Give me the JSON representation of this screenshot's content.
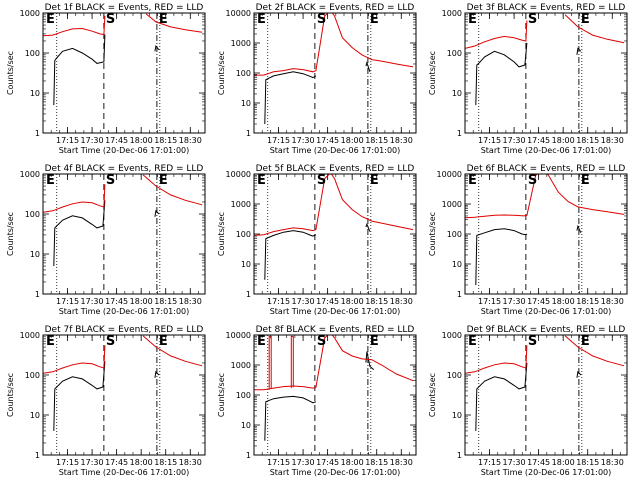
{
  "chart_data": [
    {
      "type": "line",
      "title": "Det 1f BLACK = Events, RED = LLD",
      "xlabel": "Start Time (20-Dec-06 17:01:00)",
      "ylabel": "Counts/sec",
      "yscale": "log",
      "ylim": [
        1,
        1000
      ],
      "yticks": [
        "1",
        "10",
        "100",
        "1000"
      ],
      "xlim": [
        17.0,
        18.65
      ],
      "xticks": [
        "17:15",
        "17:30",
        "17:45",
        "18:00",
        "18:15",
        "18:30"
      ],
      "markers": [
        "E",
        "S",
        "E"
      ],
      "series": [
        {
          "color": "#000000",
          "x": [
            17.11,
            17.12,
            17.14,
            17.2,
            17.3,
            17.4,
            17.5,
            17.55,
            17.62,
            17.63
          ],
          "y": [
            5,
            65,
            75,
            110,
            130,
            100,
            70,
            55,
            60,
            290
          ]
        },
        {
          "color": "#000000",
          "x": [
            18.14,
            18.15,
            18.18
          ],
          "y": [
            110,
            150,
            120
          ]
        },
        {
          "color": "#e00000",
          "x": [
            17.0,
            17.1,
            17.2,
            17.3,
            17.4,
            17.5,
            17.58,
            17.62,
            17.63
          ],
          "y": [
            270,
            280,
            340,
            400,
            410,
            350,
            300,
            290,
            850
          ]
        },
        {
          "color": "#e00000",
          "x": [
            18.05,
            18.15,
            18.3,
            18.45,
            18.62
          ],
          "y": [
            950,
            600,
            450,
            380,
            330
          ]
        }
      ]
    },
    {
      "type": "line",
      "title": "Det 2f BLACK = Events, RED = LLD",
      "xlabel": "Start Time (20-Dec-06 17:01:00)",
      "ylabel": "Counts/sec",
      "yscale": "log",
      "ylim": [
        1,
        10000
      ],
      "yticks": [
        "1",
        "10",
        "100",
        "1000",
        "10000"
      ],
      "xlim": [
        17.0,
        18.65
      ],
      "xticks": [
        "17:15",
        "17:30",
        "17:45",
        "18:00",
        "18:15",
        "18:30"
      ],
      "markers": [
        "E",
        "S",
        "E"
      ],
      "series": [
        {
          "color": "#000000",
          "x": [
            17.11,
            17.12,
            17.2,
            17.3,
            17.4,
            17.5,
            17.58,
            17.6,
            17.63
          ],
          "y": [
            2,
            60,
            80,
            95,
            110,
            95,
            75,
            70,
            80
          ]
        },
        {
          "color": "#000000",
          "x": [
            18.14,
            18.15,
            18.18
          ],
          "y": [
            170,
            220,
            110
          ]
        },
        {
          "color": "#e00000",
          "x": [
            17.0,
            17.1,
            17.2,
            17.3,
            17.4,
            17.5,
            17.6,
            17.63,
            17.72,
            17.78,
            17.82
          ],
          "y": [
            85,
            85,
            110,
            120,
            140,
            130,
            110,
            120,
            8000,
            12000,
            8000
          ]
        },
        {
          "color": "#e00000",
          "x": [
            17.82,
            17.9,
            18.0,
            18.1,
            18.2,
            18.3,
            18.45,
            18.62
          ],
          "y": [
            8000,
            1500,
            700,
            400,
            280,
            250,
            200,
            160
          ]
        }
      ]
    },
    {
      "type": "line",
      "title": "Det 3f BLACK = Events, RED = LLD",
      "xlabel": "Start Time (20-Dec-06 17:01:00)",
      "ylabel": "Counts/sec",
      "yscale": "log",
      "ylim": [
        1,
        1000
      ],
      "yticks": [
        "1",
        "10",
        "100",
        "1000"
      ],
      "xlim": [
        17.0,
        18.65
      ],
      "xticks": [
        "17:15",
        "17:30",
        "17:45",
        "18:00",
        "18:15",
        "18:30"
      ],
      "markers": [
        "E",
        "S",
        "E"
      ],
      "series": [
        {
          "color": "#000000",
          "x": [
            17.11,
            17.12,
            17.14,
            17.2,
            17.3,
            17.4,
            17.5,
            17.55,
            17.61,
            17.63
          ],
          "y": [
            5,
            50,
            55,
            80,
            110,
            90,
            60,
            45,
            50,
            180
          ]
        },
        {
          "color": "#000000",
          "x": [
            18.14,
            18.15,
            18.18
          ],
          "y": [
            90,
            130,
            110
          ]
        },
        {
          "color": "#e00000",
          "x": [
            17.0,
            17.1,
            17.2,
            17.3,
            17.4,
            17.5,
            17.58,
            17.62,
            17.63
          ],
          "y": [
            130,
            150,
            190,
            230,
            260,
            240,
            210,
            200,
            650
          ]
        },
        {
          "color": "#e00000",
          "x": [
            18.02,
            18.15,
            18.3,
            18.45,
            18.62
          ],
          "y": [
            900,
            450,
            280,
            220,
            180
          ]
        }
      ]
    },
    {
      "type": "line",
      "title": "Det 4f BLACK = Events, RED = LLD",
      "xlabel": "Start Time (20-Dec-06 17:01:00)",
      "ylabel": "Counts/sec",
      "yscale": "log",
      "ylim": [
        1,
        1000
      ],
      "yticks": [
        "1",
        "10",
        "100",
        "1000"
      ],
      "xlim": [
        17.0,
        18.65
      ],
      "xticks": [
        "17:15",
        "17:30",
        "17:45",
        "18:00",
        "18:15",
        "18:30"
      ],
      "markers": [
        "E",
        "S",
        "E"
      ],
      "series": [
        {
          "color": "#000000",
          "x": [
            17.11,
            17.12,
            17.14,
            17.2,
            17.3,
            17.4,
            17.5,
            17.55,
            17.61,
            17.63
          ],
          "y": [
            5,
            45,
            50,
            70,
            90,
            80,
            55,
            45,
            50,
            220
          ]
        },
        {
          "color": "#000000",
          "x": [
            18.14,
            18.15,
            18.18
          ],
          "y": [
            85,
            120,
            100
          ]
        },
        {
          "color": "#e00000",
          "x": [
            17.0,
            17.1,
            17.2,
            17.3,
            17.4,
            17.5,
            17.58,
            17.62,
            17.63
          ],
          "y": [
            110,
            120,
            150,
            180,
            200,
            190,
            160,
            150,
            550
          ]
        },
        {
          "color": "#e00000",
          "x": [
            18.02,
            18.15,
            18.3,
            18.45,
            18.62
          ],
          "y": [
            950,
            500,
            300,
            220,
            170
          ]
        }
      ]
    },
    {
      "type": "line",
      "title": "Det 5f BLACK = Events, RED = LLD",
      "xlabel": "Start Time (20-Dec-06 17:01:00)",
      "ylabel": "Counts/sec",
      "yscale": "log",
      "ylim": [
        1,
        10000
      ],
      "yticks": [
        "1",
        "10",
        "100",
        "1000",
        "10000"
      ],
      "xlim": [
        17.0,
        18.65
      ],
      "xticks": [
        "17:15",
        "17:30",
        "17:45",
        "18:00",
        "18:15",
        "18:30"
      ],
      "markers": [
        "E",
        "S",
        "E"
      ],
      "series": [
        {
          "color": "#000000",
          "x": [
            17.11,
            17.12,
            17.2,
            17.3,
            17.4,
            17.5,
            17.58,
            17.6,
            17.63
          ],
          "y": [
            3,
            70,
            90,
            115,
            130,
            115,
            90,
            85,
            95
          ]
        },
        {
          "color": "#000000",
          "x": [
            18.14,
            18.15,
            18.18
          ],
          "y": [
            170,
            210,
            120
          ]
        },
        {
          "color": "#e00000",
          "x": [
            17.0,
            17.1,
            17.2,
            17.3,
            17.4,
            17.5,
            17.6,
            17.63,
            17.72,
            17.78,
            17.82
          ],
          "y": [
            90,
            95,
            120,
            140,
            160,
            150,
            130,
            140,
            7000,
            11000,
            7000
          ]
        },
        {
          "color": "#e00000",
          "x": [
            17.82,
            17.9,
            18.0,
            18.1,
            18.2,
            18.3,
            18.45,
            18.62
          ],
          "y": [
            7000,
            1400,
            650,
            380,
            270,
            230,
            180,
            140
          ]
        }
      ]
    },
    {
      "type": "line",
      "title": "Det 6f BLACK = Events, RED = LLD",
      "xlabel": "Start Time (20-Dec-06 17:01:00)",
      "ylabel": "Counts/sec",
      "yscale": "log",
      "ylim": [
        1,
        10000
      ],
      "yticks": [
        "1",
        "10",
        "100",
        "1000",
        "10000"
      ],
      "xlim": [
        17.0,
        18.65
      ],
      "xticks": [
        "17:15",
        "17:30",
        "17:45",
        "18:00",
        "18:15",
        "18:30"
      ],
      "markers": [
        "E",
        "S",
        "E"
      ],
      "series": [
        {
          "color": "#000000",
          "x": [
            17.11,
            17.12,
            17.2,
            17.3,
            17.4,
            17.5,
            17.58,
            17.62,
            17.63
          ],
          "y": [
            2,
            90,
            110,
            140,
            150,
            130,
            100,
            95,
            100
          ]
        },
        {
          "color": "#000000",
          "x": [
            18.14,
            18.15,
            18.18
          ],
          "y": [
            130,
            180,
            110
          ]
        },
        {
          "color": "#e00000",
          "x": [
            17.0,
            17.1,
            17.2,
            17.3,
            17.4,
            17.5,
            17.6,
            17.63,
            17.72,
            17.8,
            17.85
          ],
          "y": [
            350,
            360,
            390,
            420,
            430,
            420,
            400,
            420,
            9000,
            14000,
            9000
          ]
        },
        {
          "color": "#e00000",
          "x": [
            17.85,
            17.95,
            18.05,
            18.15,
            18.3,
            18.45,
            18.62
          ],
          "y": [
            9000,
            2500,
            1200,
            800,
            650,
            550,
            450
          ]
        }
      ]
    },
    {
      "type": "line",
      "title": "Det 7f BLACK = Events, RED = LLD",
      "xlabel": "Start Time (20-Dec-06 17:01:00)",
      "ylabel": "Counts/sec",
      "yscale": "log",
      "ylim": [
        1,
        1000
      ],
      "yticks": [
        "1",
        "10",
        "100",
        "1000"
      ],
      "xlim": [
        17.0,
        18.65
      ],
      "xticks": [
        "17:15",
        "17:30",
        "17:45",
        "18:00",
        "18:15",
        "18:30"
      ],
      "markers": [
        "E",
        "S",
        "E"
      ],
      "series": [
        {
          "color": "#000000",
          "x": [
            17.11,
            17.12,
            17.14,
            17.2,
            17.3,
            17.4,
            17.5,
            17.55,
            17.61,
            17.63
          ],
          "y": [
            4,
            45,
            50,
            70,
            90,
            80,
            55,
            45,
            50,
            220
          ]
        },
        {
          "color": "#000000",
          "x": [
            18.14,
            18.15,
            18.18
          ],
          "y": [
            85,
            120,
            100
          ]
        },
        {
          "color": "#e00000",
          "x": [
            17.0,
            17.1,
            17.2,
            17.3,
            17.4,
            17.5,
            17.58,
            17.62,
            17.63
          ],
          "y": [
            110,
            120,
            150,
            180,
            200,
            190,
            160,
            150,
            550
          ]
        },
        {
          "color": "#e00000",
          "x": [
            18.02,
            18.15,
            18.3,
            18.45,
            18.62
          ],
          "y": [
            950,
            500,
            300,
            220,
            170
          ]
        }
      ]
    },
    {
      "type": "line",
      "title": "Det 8f BLACK = Events, RED = LLD",
      "xlabel": "Start Time (20-Dec-06 17:01:00)",
      "ylabel": "Counts/sec",
      "yscale": "log",
      "ylim": [
        1,
        10000
      ],
      "yticks": [
        "1",
        "10",
        "100",
        "1000",
        "10000"
      ],
      "xlim": [
        17.0,
        18.65
      ],
      "xticks": [
        "17:15",
        "17:30",
        "17:45",
        "18:00",
        "18:15",
        "18:30"
      ],
      "markers": [
        "E",
        "S",
        "E"
      ],
      "series": [
        {
          "color": "#000000",
          "x": [
            17.11,
            17.12,
            17.2,
            17.3,
            17.4,
            17.5,
            17.58,
            17.6,
            17.63
          ],
          "y": [
            3,
            60,
            75,
            85,
            90,
            80,
            60,
            55,
            60
          ]
        },
        {
          "color": "#000000",
          "x": [
            18.14,
            18.15,
            18.18,
            18.22
          ],
          "y": [
            1200,
            2800,
            900,
            700
          ]
        },
        {
          "color": "#e00000",
          "x": [
            17.0,
            17.1,
            17.2,
            17.3,
            17.4,
            17.5,
            17.6,
            17.63,
            17.72,
            17.78,
            17.82
          ],
          "y": [
            150,
            150,
            170,
            190,
            200,
            190,
            170,
            180,
            8000,
            12000,
            8000
          ]
        },
        {
          "color": "#e00000",
          "x": [
            17.82,
            17.9,
            18.0,
            18.1,
            18.2,
            18.3,
            18.45,
            18.62
          ],
          "y": [
            8000,
            3000,
            2000,
            1600,
            1500,
            1000,
            500,
            300
          ]
        },
        {
          "color": "#e00000",
          "x": [
            17.155,
            17.155,
            17.175,
            17.175
          ],
          "y": [
            150,
            9000,
            9000,
            160
          ]
        },
        {
          "color": "#e00000",
          "x": [
            17.38,
            17.38,
            17.4,
            17.4
          ],
          "y": [
            170,
            9000,
            9000,
            180
          ]
        }
      ]
    },
    {
      "type": "line",
      "title": "Det 9f BLACK = Events, RED = LLD",
      "xlabel": "Start Time (20-Dec-06 17:01:00)",
      "ylabel": "Counts/sec",
      "yscale": "log",
      "ylim": [
        1,
        1000
      ],
      "yticks": [
        "1",
        "10",
        "100",
        "1000"
      ],
      "xlim": [
        17.0,
        18.65
      ],
      "xticks": [
        "17:15",
        "17:30",
        "17:45",
        "18:00",
        "18:15",
        "18:30"
      ],
      "markers": [
        "E",
        "S",
        "E"
      ],
      "series": [
        {
          "color": "#000000",
          "x": [
            17.11,
            17.12,
            17.14,
            17.2,
            17.3,
            17.4,
            17.5,
            17.55,
            17.61,
            17.63
          ],
          "y": [
            4,
            45,
            50,
            70,
            90,
            80,
            55,
            45,
            50,
            200
          ]
        },
        {
          "color": "#000000",
          "x": [
            18.14,
            18.15,
            18.18
          ],
          "y": [
            85,
            120,
            100
          ]
        },
        {
          "color": "#e00000",
          "x": [
            17.0,
            17.1,
            17.2,
            17.3,
            17.4,
            17.5,
            17.58,
            17.62,
            17.63
          ],
          "y": [
            110,
            120,
            150,
            180,
            200,
            190,
            160,
            150,
            550
          ]
        },
        {
          "color": "#e00000",
          "x": [
            18.02,
            18.15,
            18.3,
            18.45,
            18.62
          ],
          "y": [
            950,
            500,
            300,
            220,
            170
          ]
        }
      ]
    }
  ],
  "vlines": {
    "dotted": [
      17.14,
      18.19
    ],
    "dashed": [
      17.62,
      18.16
    ]
  }
}
